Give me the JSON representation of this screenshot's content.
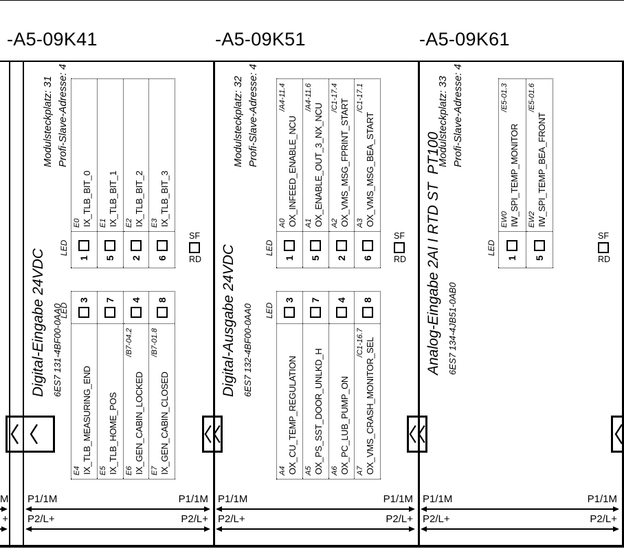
{
  "labels": {
    "led": "LED",
    "sf": "SF",
    "rd": "RD"
  },
  "edge": {
    "prev_top": "M",
    "prev_bottom": "+"
  },
  "modules": [
    {
      "title": "-A5-09K41",
      "slot": "Modulsteckplatz: 31",
      "address": "Profi-Slave-Adresse: 4",
      "type": "Digital-Eingabe 24VDC",
      "part": "6ES7 131-4BF00-0AA0",
      "right_rows": [
        {
          "ch": "1",
          "addr": "E0",
          "name": "IX_TLB_BIT_0",
          "xref": ""
        },
        {
          "ch": "5",
          "addr": "E1",
          "name": "IX_TLB_BIT_1",
          "xref": ""
        },
        {
          "ch": "2",
          "addr": "E2",
          "name": "IX_TLB_BIT_2",
          "xref": ""
        },
        {
          "ch": "6",
          "addr": "E3",
          "name": "IX_TLB_BIT_3",
          "xref": ""
        }
      ],
      "left_rows": [
        {
          "ch": "3",
          "addr": "E4",
          "name": "IX_TLB_MEASURING_END",
          "xref": ""
        },
        {
          "ch": "7",
          "addr": "E5",
          "name": "IX_TLB_HOME_POS",
          "xref": ""
        },
        {
          "ch": "4",
          "addr": "E6",
          "name": "IX_GEN_CABIN_LOCKED",
          "xref": "/B7-04.2"
        },
        {
          "ch": "8",
          "addr": "E7",
          "name": "IX_GEN_CABIN_CLOSED",
          "xref": "/B7-01.8"
        }
      ],
      "bus": {
        "top_left": "P1/1M",
        "top_right": "P1/1M",
        "bottom_left": "P2/L+",
        "bottom_right": "P2/L+"
      }
    },
    {
      "title": "-A5-09K51",
      "slot": "Modulsteckplatz: 32",
      "address": "Profi-Slave-Adresse: 4",
      "type": "Digital-Ausgabe 24VDC",
      "part": "6ES7 132-4BF00-0AA0",
      "right_rows": [
        {
          "ch": "1",
          "addr": "A0",
          "name": "OX_INFEED_ENABLE_NCU",
          "xref": "/A4-11.4"
        },
        {
          "ch": "5",
          "addr": "A1",
          "name": "OX_ENABLE_OUT_3_NX_NCU",
          "xref": "/A4-11.6"
        },
        {
          "ch": "2",
          "addr": "A2",
          "name": "OX_VMS_MSG_FPRINT_START",
          "xref": "/C1-17.4"
        },
        {
          "ch": "6",
          "addr": "A3",
          "name": "OX_VMS_MSG_BEA_START",
          "xref": "/C1-17.1"
        }
      ],
      "left_rows": [
        {
          "ch": "3",
          "addr": "A4",
          "name": "OX_CU_TEMP_REGULATION",
          "xref": ""
        },
        {
          "ch": "7",
          "addr": "A5",
          "name": "OX_PS_SST_DOOR_UNLKD_H",
          "xref": ""
        },
        {
          "ch": "4",
          "addr": "A6",
          "name": "OX_PC_LUB_PUMP_ON",
          "xref": ""
        },
        {
          "ch": "8",
          "addr": "A7",
          "name": "OX_VMS_CRASH_MONITOR_SEL",
          "xref": "/C1-16.7"
        }
      ],
      "bus": {
        "top_left": "P1/1M",
        "top_right": "P1/1M",
        "bottom_left": "P2/L+",
        "bottom_right": "P2/L+"
      }
    },
    {
      "title": "-A5-09K61",
      "slot": "Modulsteckplatz: 33",
      "address": "Profi-Slave-Adresse: 4",
      "type": "Analog-Eingabe 2AI I RTD ST  PT100",
      "part": "6ES7 134-4JB51-0AB0",
      "right_rows": [
        {
          "ch": "1",
          "addr": "EW0",
          "name": "IW_SPI_TEMP_MONITOR",
          "xref": "/E5-01.3"
        },
        {
          "ch": "5",
          "addr": "EW2",
          "name": "IW_SPI_TEMP_BEA_FRONT",
          "xref": "/E5-01.6"
        }
      ],
      "left_rows": null,
      "bus": {
        "top_left": "P1/1M",
        "top_right": "P1/1M",
        "bottom_left": "P2/L+",
        "bottom_right": "P2/L+"
      }
    }
  ]
}
